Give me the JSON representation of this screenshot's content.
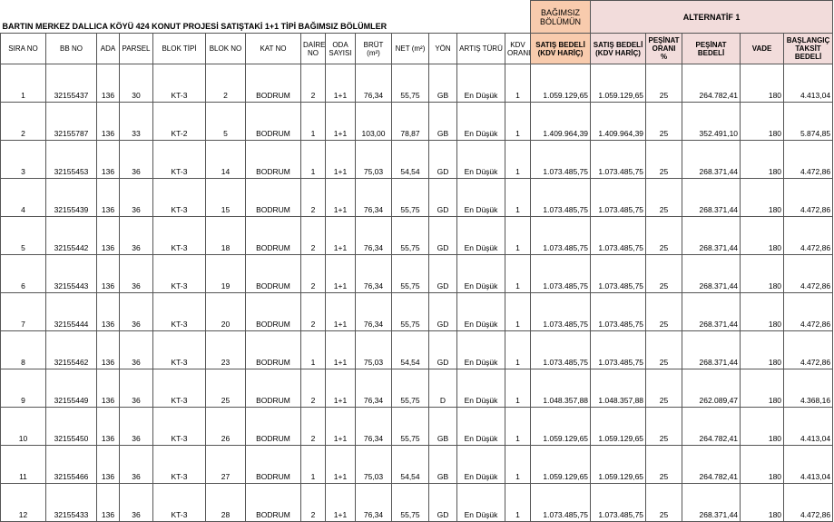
{
  "title": "BARTIN MERKEZ DALLICA KÖYÜ 424 KONUT PROJESİ SATIŞTAKİ 1+1 TİPİ BAĞIMSIZ BÖLÜMLER",
  "group_headers": {
    "unit": "BAĞIMSIZ BÖLÜMÜN",
    "alternative": "ALTERNATİF 1"
  },
  "columns": [
    "SIRA NO",
    "BB NO",
    "ADA",
    "PARSEL",
    "BLOK TİPİ",
    "BLOK NO",
    "KAT NO",
    "DAİRE NO",
    "ODA SAYISI",
    "BRÜT (m²)",
    "NET (m²)",
    "YÖN",
    "ARTIŞ TÜRÜ",
    "KDV ORANI",
    "SATIŞ BEDELİ (KDV HARİÇ)",
    "SATIŞ BEDELİ (KDV HARİÇ)",
    "PEŞİNAT ORANI %",
    "PEŞİNAT BEDELİ",
    "VADE",
    "BAŞLANGIÇ TAKSİT BEDELİ"
  ],
  "rows": [
    [
      "1",
      "32155437",
      "136",
      "30",
      "KT-3",
      "2",
      "BODRUM",
      "2",
      "1+1",
      "76,34",
      "55,75",
      "GB",
      "En Düşük",
      "1",
      "1.059.129,65",
      "1.059.129,65",
      "25",
      "264.782,41",
      "180",
      "4.413,04"
    ],
    [
      "2",
      "32155787",
      "136",
      "33",
      "KT-2",
      "5",
      "BODRUM",
      "1",
      "1+1",
      "103,00",
      "78,87",
      "GB",
      "En Düşük",
      "1",
      "1.409.964,39",
      "1.409.964,39",
      "25",
      "352.491,10",
      "180",
      "5.874,85"
    ],
    [
      "3",
      "32155453",
      "136",
      "36",
      "KT-3",
      "14",
      "BODRUM",
      "1",
      "1+1",
      "75,03",
      "54,54",
      "GD",
      "En Düşük",
      "1",
      "1.073.485,75",
      "1.073.485,75",
      "25",
      "268.371,44",
      "180",
      "4.472,86"
    ],
    [
      "4",
      "32155439",
      "136",
      "36",
      "KT-3",
      "15",
      "BODRUM",
      "2",
      "1+1",
      "76,34",
      "55,75",
      "GD",
      "En Düşük",
      "1",
      "1.073.485,75",
      "1.073.485,75",
      "25",
      "268.371,44",
      "180",
      "4.472,86"
    ],
    [
      "5",
      "32155442",
      "136",
      "36",
      "KT-3",
      "18",
      "BODRUM",
      "2",
      "1+1",
      "76,34",
      "55,75",
      "GD",
      "En Düşük",
      "1",
      "1.073.485,75",
      "1.073.485,75",
      "25",
      "268.371,44",
      "180",
      "4.472,86"
    ],
    [
      "6",
      "32155443",
      "136",
      "36",
      "KT-3",
      "19",
      "BODRUM",
      "2",
      "1+1",
      "76,34",
      "55,75",
      "GD",
      "En Düşük",
      "1",
      "1.073.485,75",
      "1.073.485,75",
      "25",
      "268.371,44",
      "180",
      "4.472,86"
    ],
    [
      "7",
      "32155444",
      "136",
      "36",
      "KT-3",
      "20",
      "BODRUM",
      "2",
      "1+1",
      "76,34",
      "55,75",
      "GD",
      "En Düşük",
      "1",
      "1.073.485,75",
      "1.073.485,75",
      "25",
      "268.371,44",
      "180",
      "4.472,86"
    ],
    [
      "8",
      "32155462",
      "136",
      "36",
      "KT-3",
      "23",
      "BODRUM",
      "1",
      "1+1",
      "75,03",
      "54,54",
      "GD",
      "En Düşük",
      "1",
      "1.073.485,75",
      "1.073.485,75",
      "25",
      "268.371,44",
      "180",
      "4.472,86"
    ],
    [
      "9",
      "32155449",
      "136",
      "36",
      "KT-3",
      "25",
      "BODRUM",
      "2",
      "1+1",
      "76,34",
      "55,75",
      "D",
      "En Düşük",
      "1",
      "1.048.357,88",
      "1.048.357,88",
      "25",
      "262.089,47",
      "180",
      "4.368,16"
    ],
    [
      "10",
      "32155450",
      "136",
      "36",
      "KT-3",
      "26",
      "BODRUM",
      "2",
      "1+1",
      "76,34",
      "55,75",
      "GB",
      "En Düşük",
      "1",
      "1.059.129,65",
      "1.059.129,65",
      "25",
      "264.782,41",
      "180",
      "4.413,04"
    ],
    [
      "11",
      "32155466",
      "136",
      "36",
      "KT-3",
      "27",
      "BODRUM",
      "1",
      "1+1",
      "75,03",
      "54,54",
      "GB",
      "En Düşük",
      "1",
      "1.059.129,65",
      "1.059.129,65",
      "25",
      "264.782,41",
      "180",
      "4.413,04"
    ],
    [
      "12",
      "32155433",
      "136",
      "36",
      "KT-3",
      "28",
      "BODRUM",
      "2",
      "1+1",
      "76,34",
      "55,75",
      "GD",
      "En Düşük",
      "1",
      "1.073.485,75",
      "1.073.485,75",
      "25",
      "268.371,44",
      "180",
      "4.472,86"
    ]
  ]
}
